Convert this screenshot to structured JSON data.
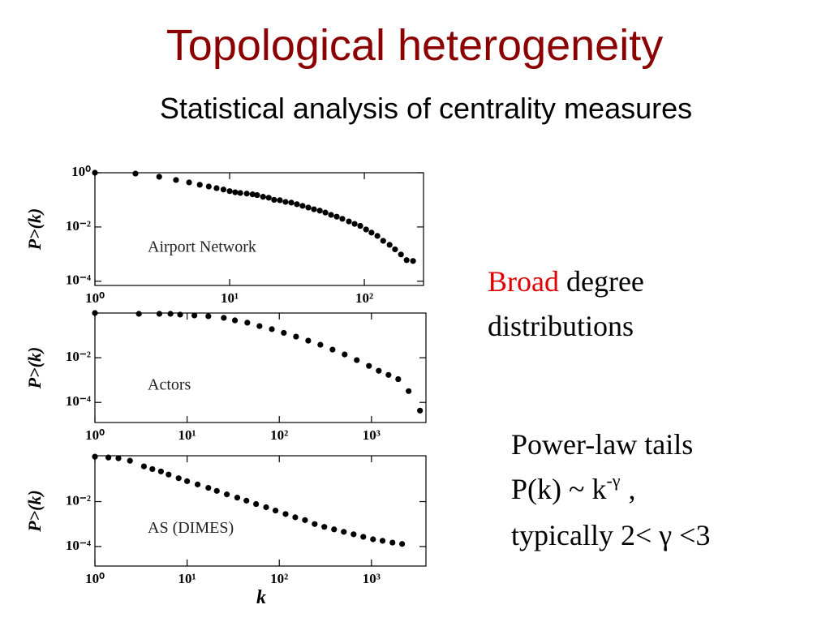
{
  "slide": {
    "title": "Topological heterogeneity",
    "subtitle": "Statistical analysis of centrality measures",
    "broad": {
      "highlight": "Broad",
      "word": "degree",
      "line2": "distributions"
    },
    "power_law": {
      "line1": "Power-law tails",
      "formula": "P(k) ~ k",
      "exponent": "-γ",
      "comma": ",",
      "line3": "typically 2< γ <3"
    }
  },
  "chart_data": [
    {
      "type": "scatter",
      "annotation": "Airport Network",
      "ylabel": "P>(k)",
      "xscale": "log",
      "yscale": "log",
      "color": "#000000",
      "xlim": [
        1,
        275
      ],
      "ylim": [
        7e-05,
        1
      ],
      "xticks": [
        {
          "value": 1,
          "label": "10⁰"
        },
        {
          "value": 10,
          "label": "10¹"
        },
        {
          "value": 100,
          "label": "10²"
        }
      ],
      "yticks": [
        {
          "value": 1,
          "label": "10⁰"
        },
        {
          "value": 0.01,
          "label": "10⁻²"
        },
        {
          "value": 0.0001,
          "label": "10⁻⁴"
        }
      ],
      "x": [
        1,
        2,
        3,
        4,
        5,
        6,
        7,
        8,
        9,
        10,
        11,
        12,
        13.4,
        14.8,
        16,
        17.7,
        19.5,
        21.4,
        23.6,
        26,
        28.7,
        31.6,
        34.8,
        38.4,
        42.3,
        46.7,
        51.4,
        56.6,
        62.4,
        68.7,
        76.8,
        84.7,
        93.3,
        103,
        113,
        125,
        138,
        154,
        169,
        187,
        206,
        230
      ],
      "values": [
        1,
        0.93,
        0.71,
        0.54,
        0.44,
        0.36,
        0.31,
        0.27,
        0.24,
        0.21,
        0.19,
        0.18,
        0.17,
        0.16,
        0.15,
        0.13,
        0.12,
        0.1,
        0.097,
        0.084,
        0.079,
        0.069,
        0.06,
        0.052,
        0.045,
        0.04,
        0.034,
        0.028,
        0.024,
        0.02,
        0.016,
        0.013,
        0.011,
        0.0081,
        0.0062,
        0.0047,
        0.0031,
        0.0022,
        0.0015,
        0.00097,
        0.0006,
        0.00056
      ]
    },
    {
      "type": "scatter",
      "annotation": "Actors",
      "ylabel": "P>(k)",
      "xscale": "log",
      "yscale": "log",
      "color": "#000000",
      "xlim": [
        1,
        3900
      ],
      "ylim": [
        1.26e-05,
        1
      ],
      "xticks": [
        {
          "value": 1,
          "label": "10⁰"
        },
        {
          "value": 10,
          "label": "10¹"
        },
        {
          "value": 100,
          "label": "10²"
        },
        {
          "value": 1000,
          "label": "10³"
        }
      ],
      "yticks": [
        {
          "value": 0.01,
          "label": "10⁻²"
        },
        {
          "value": 0.0001,
          "label": "10⁻⁴"
        }
      ],
      "x": [
        1,
        3,
        5,
        6.6,
        8.4,
        12,
        17,
        25,
        33,
        45,
        61,
        83,
        112,
        152,
        206,
        279,
        378,
        512,
        693,
        939,
        1200,
        1530,
        1950,
        2530,
        3360
      ],
      "values": [
        1,
        0.92,
        0.92,
        0.92,
        0.85,
        0.78,
        0.72,
        0.61,
        0.47,
        0.37,
        0.26,
        0.19,
        0.13,
        0.088,
        0.058,
        0.038,
        0.023,
        0.014,
        0.0078,
        0.0043,
        0.0026,
        0.0017,
        0.0011,
        0.00032,
        4.3e-05
      ]
    },
    {
      "type": "scatter",
      "annotation": "AS (DIMES)",
      "ylabel": "P>(k)",
      "xlabel": "k",
      "xscale": "log",
      "yscale": "log",
      "color": "#000000",
      "xlim": [
        1,
        3900
      ],
      "ylim": [
        1.35e-05,
        1.1
      ],
      "xticks": [
        {
          "value": 1,
          "label": "10⁰"
        },
        {
          "value": 10,
          "label": "10¹"
        },
        {
          "value": 100,
          "label": "10²"
        },
        {
          "value": 1000,
          "label": "10³"
        }
      ],
      "yticks": [
        {
          "value": 0.01,
          "label": "10⁻²"
        },
        {
          "value": 0.0001,
          "label": "10⁻⁴"
        }
      ],
      "x": [
        1,
        1.4,
        1.8,
        2.4,
        3.4,
        4.2,
        5.2,
        6.3,
        8.1,
        10,
        13,
        17,
        21,
        27,
        35,
        44,
        56,
        72,
        91,
        117,
        149,
        190,
        242,
        308,
        393,
        501,
        640,
        815,
        1040,
        1320,
        1690,
        2150
      ],
      "values": [
        1,
        0.92,
        0.85,
        0.66,
        0.37,
        0.28,
        0.22,
        0.16,
        0.11,
        0.081,
        0.058,
        0.041,
        0.03,
        0.021,
        0.015,
        0.011,
        0.0078,
        0.0056,
        0.004,
        0.0028,
        0.002,
        0.0015,
        0.001,
        0.00075,
        0.00058,
        0.00045,
        0.00035,
        0.00027,
        0.00021,
        0.00018,
        0.00015,
        0.00013
      ]
    }
  ]
}
